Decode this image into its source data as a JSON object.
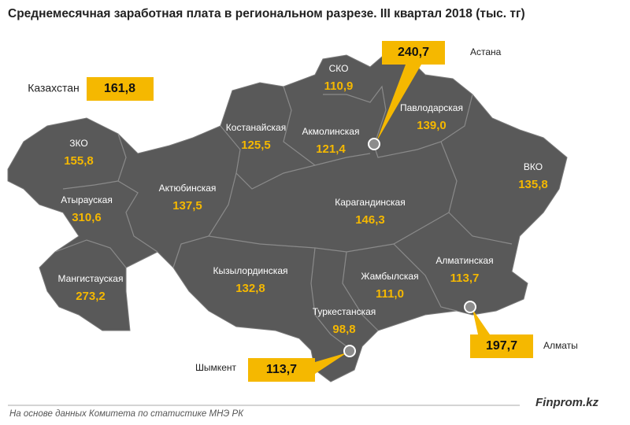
{
  "title": "Среднемесячная заработная плата в региональном разрезе. III квартал 2018 (тыс. тг)",
  "national": {
    "name": "Казахстан",
    "value": "161,8"
  },
  "regions": [
    {
      "name": "ЗКО",
      "value": "155,8"
    },
    {
      "name": "Атырауская",
      "value": "310,6"
    },
    {
      "name": "Мангистауская",
      "value": "273,2"
    },
    {
      "name": "Актюбинская",
      "value": "137,5"
    },
    {
      "name": "Костанайская",
      "value": "125,5"
    },
    {
      "name": "СКО",
      "value": "110,9"
    },
    {
      "name": "Акмолинская",
      "value": "121,4"
    },
    {
      "name": "Павлодарская",
      "value": "139,0"
    },
    {
      "name": "ВКО",
      "value": "135,8"
    },
    {
      "name": "Карагандинская",
      "value": "146,3"
    },
    {
      "name": "Кызылординская",
      "value": "132,8"
    },
    {
      "name": "Жамбылская",
      "value": "111,0"
    },
    {
      "name": "Алматинская",
      "value": "113,7"
    },
    {
      "name": "Туркестанская",
      "value": "98,8"
    }
  ],
  "cities": [
    {
      "name": "Астана",
      "value": "240,7"
    },
    {
      "name": "Алматы",
      "value": "197,7"
    },
    {
      "name": "Шымкент",
      "value": "113,7"
    }
  ],
  "source": "На основе данных Комитета по статистике МНЭ РК",
  "brand": "Finprom.kz"
}
